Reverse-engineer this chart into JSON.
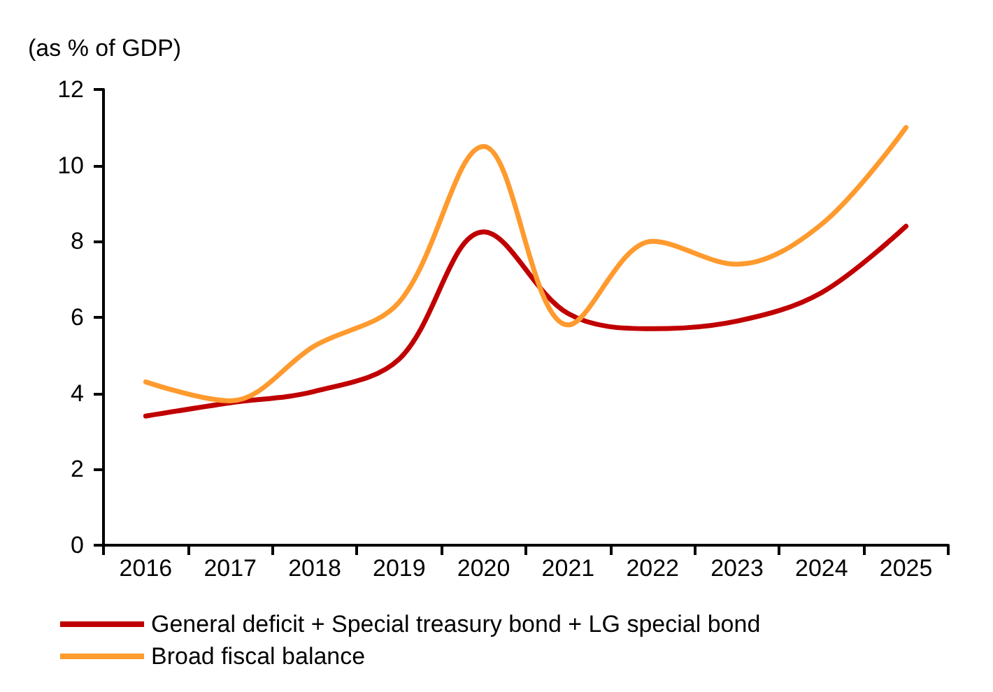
{
  "chart_data": {
    "type": "line",
    "ylabel": "(as % of GDP)",
    "categories": [
      "2016",
      "2017",
      "2018",
      "2019",
      "2020",
      "2021",
      "2022",
      "2023",
      "2024",
      "2025"
    ],
    "series": [
      {
        "name": "General deficit + Special treasury bond + LG special bond",
        "color": "#c00000",
        "values": [
          3.4,
          3.75,
          4.05,
          4.9,
          8.25,
          6.1,
          5.7,
          5.9,
          6.65,
          8.4
        ]
      },
      {
        "name": "Broad fiscal balance",
        "color": "#ff9a2e",
        "values": [
          4.3,
          3.8,
          5.25,
          6.4,
          10.5,
          5.8,
          8.0,
          7.4,
          8.45,
          11.0
        ]
      }
    ],
    "ylim": [
      0,
      12
    ],
    "yticks": [
      0,
      2,
      4,
      6,
      8,
      10,
      12
    ],
    "grid": false,
    "legend": "bottom",
    "marker": "none",
    "line_style": "solid"
  }
}
